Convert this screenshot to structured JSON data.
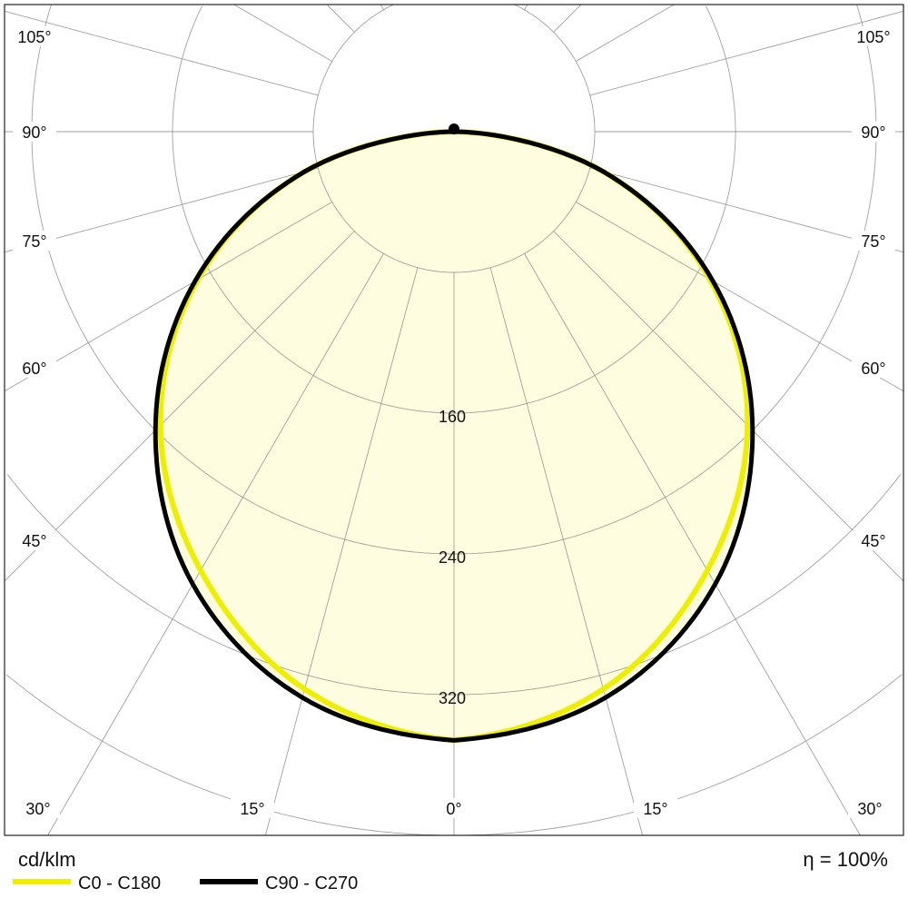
{
  "chart_data": {
    "type": "polar-line",
    "unit": "cd/klm",
    "efficiency_label": "η = 100%",
    "radial_ticks": [
      80,
      160,
      240,
      320,
      400,
      480
    ],
    "radial_tick_labels": [
      "160",
      "240",
      "320"
    ],
    "angle_ticks_deg": [
      0,
      15,
      30,
      45,
      60,
      75,
      90,
      105
    ],
    "angle_tick_labels": [
      "0°",
      "15°",
      "30°",
      "45°",
      "60°",
      "75°",
      "90°",
      "105°"
    ],
    "angles_deg": [
      0,
      15,
      30,
      45,
      60,
      75,
      90
    ],
    "series": [
      {
        "name": "C0 - C180",
        "color": "#EEEE00",
        "values": [
          346,
          328,
          288,
          236,
          168,
          88,
          0
        ]
      },
      {
        "name": "C90 - C270",
        "color": "#000000",
        "values": [
          346,
          333,
          297,
          240,
          170,
          88,
          0
        ]
      }
    ],
    "fill_color": "#FFFDE0",
    "grid": true,
    "legend": "bottom-left"
  }
}
